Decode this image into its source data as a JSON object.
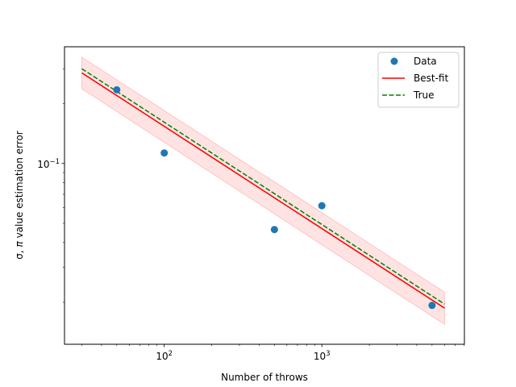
{
  "chart_data": {
    "type": "scatter",
    "xscale": "log",
    "yscale": "log",
    "xlim": [
      23.3,
      8020
    ],
    "ylim": [
      0.0123,
      0.387
    ],
    "xlabel": "Number of throws",
    "ylabel_prefix": "σ, ",
    "ylabel_pi": "π",
    "ylabel_suffix": " value estimation error",
    "xticks_major": [
      {
        "value": 100,
        "base": "10",
        "exp": "2"
      },
      {
        "value": 1000,
        "base": "10",
        "exp": "3"
      }
    ],
    "yticks_major": [
      {
        "value": 0.1,
        "base": "10",
        "exp": "−1"
      }
    ],
    "legend": {
      "placement": "top-right",
      "entries": [
        {
          "label": "Data",
          "kind": "marker",
          "color": "#1f77b4"
        },
        {
          "label": "Best-fit",
          "kind": "line",
          "color": "#ff0000"
        },
        {
          "label": "True",
          "kind": "dashed",
          "color": "#008000"
        }
      ]
    },
    "data": {
      "name": "Data",
      "color": "#1f77b4",
      "x": [
        50,
        100,
        500,
        1000,
        5000
      ],
      "y": [
        0.235,
        0.113,
        0.0465,
        0.0613,
        0.0193
      ]
    },
    "best_fit": {
      "name": "Best-fit",
      "color": "#ff0000",
      "x": [
        30,
        6000
      ],
      "y": [
        0.286,
        0.0187
      ]
    },
    "confidence_band": {
      "color": "#ffcccc",
      "x": [
        30,
        6000
      ],
      "upper": [
        0.343,
        0.0225
      ],
      "lower": [
        0.238,
        0.0155
      ]
    },
    "true_curve": {
      "name": "True",
      "color": "#008000",
      "x": [
        30,
        6000
      ],
      "y": [
        0.3,
        0.0196
      ]
    }
  }
}
